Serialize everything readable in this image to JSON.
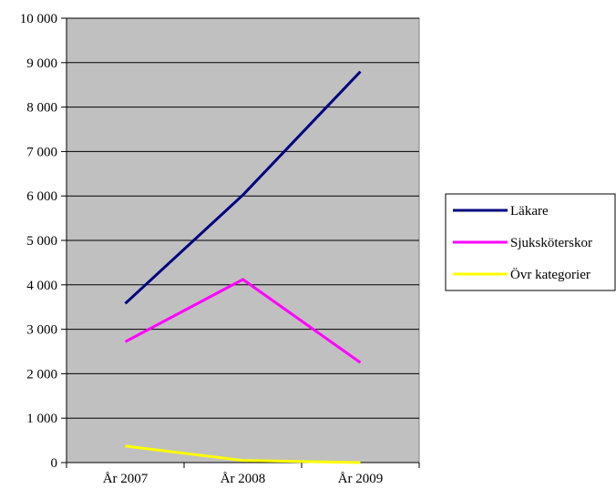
{
  "chart_data": {
    "type": "line",
    "categories": [
      "År 2007",
      "År 2008",
      "År 2009"
    ],
    "series": [
      {
        "name": "Läkare",
        "values": [
          3580,
          6020,
          8800
        ],
        "color": "#000080"
      },
      {
        "name": "Sjuksköterskor",
        "values": [
          2720,
          4120,
          2250
        ],
        "color": "#ff00ff"
      },
      {
        "name": "Övr kategorier",
        "values": [
          370,
          50,
          0
        ],
        "color": "#ffff00"
      }
    ],
    "yticks": [
      0,
      1000,
      2000,
      3000,
      4000,
      5000,
      6000,
      7000,
      8000,
      9000,
      10000
    ],
    "ytick_labels": [
      "0",
      "1 000",
      "2 000",
      "3 000",
      "4 000",
      "5 000",
      "6 000",
      "7 000",
      "8 000",
      "9 000",
      "10 000"
    ],
    "ylim": [
      0,
      10000
    ],
    "title": "",
    "xlabel": "",
    "ylabel": "",
    "grid": "horizontal",
    "plot_background": "#c0c0c0",
    "legend_position": "right"
  }
}
